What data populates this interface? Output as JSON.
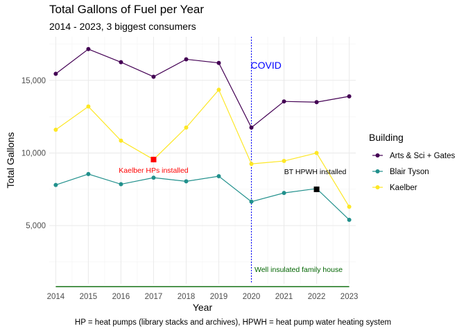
{
  "chart_data": {
    "type": "line",
    "title": "Total Gallons of Fuel per Year",
    "subtitle": "2014 - 2023, 3 biggest consumers",
    "xlabel": "Year",
    "ylabel": "Total Gallons",
    "caption": "HP = heat pumps (library stacks and archives), HPWH = heat pump water heating system",
    "x": [
      2014,
      2015,
      2016,
      2017,
      2018,
      2019,
      2020,
      2021,
      2022,
      2023
    ],
    "xlim": [
      2013.8,
      2023.2
    ],
    "ylim": [
      1000,
      18000
    ],
    "yticks": [
      5000,
      10000,
      15000
    ],
    "ytick_labels": [
      "5,000",
      "10,000",
      "15,000"
    ],
    "grid": true,
    "legend_title": "Building",
    "legend_position": "right",
    "series": [
      {
        "name": "Arts & Sci + Gates",
        "color": "#440154",
        "values": [
          15450,
          17150,
          16250,
          15250,
          16450,
          16200,
          11750,
          13550,
          13500,
          13900
        ]
      },
      {
        "name": "Blair Tyson",
        "color": "#21908c",
        "values": [
          7800,
          8550,
          7850,
          8300,
          8050,
          8400,
          6650,
          7250,
          7550,
          5400
        ]
      },
      {
        "name": "Kaelber",
        "color": "#fde725",
        "values": [
          11600,
          13200,
          10850,
          9550,
          11750,
          14350,
          9250,
          9450,
          10000,
          6300
        ]
      }
    ],
    "baseline": {
      "label": "Well insulated family house",
      "value": 800,
      "color": "#006400"
    },
    "vline": {
      "x": 2020,
      "label": "COVID",
      "color": "#0000ff"
    },
    "markers": [
      {
        "x": 2017,
        "y": 9550,
        "label": "Kaelber HPs installed",
        "color": "#ff0000"
      },
      {
        "x": 2022,
        "y": 7500,
        "label": "BT HPWH installed",
        "color": "#000000"
      }
    ]
  }
}
